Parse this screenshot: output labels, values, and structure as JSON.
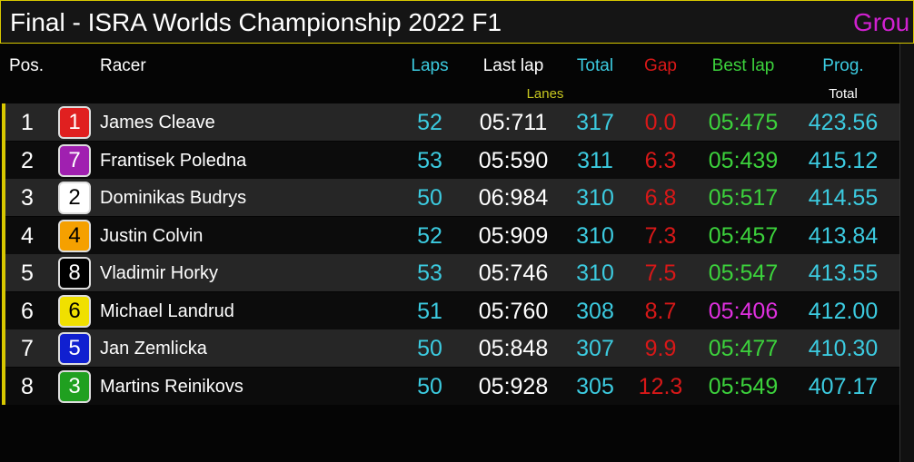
{
  "header": {
    "title": "Final - ISRA Worlds Championship 2022 F1",
    "group": "Grou"
  },
  "table": {
    "columns": [
      "Pos.",
      "Racer",
      "Laps",
      "Last lap",
      "Total",
      "Gap",
      "Best lap",
      "Prog."
    ],
    "subcolumns": [
      "Lanes",
      "Total"
    ],
    "rows": [
      [
        "1",
        "1",
        "James Cleave",
        "52",
        "05:711",
        "317",
        "0.0",
        "05:475",
        "423.56"
      ],
      [
        "2",
        "7",
        "Frantisek Poledna",
        "53",
        "05:590",
        "311",
        "6.3",
        "05:439",
        "415.12"
      ],
      [
        "3",
        "2",
        "Dominikas Budrys",
        "50",
        "06:984",
        "310",
        "6.8",
        "05:517",
        "414.55"
      ],
      [
        "4",
        "4",
        "Justin Colvin",
        "52",
        "05:909",
        "310",
        "7.3",
        "05:457",
        "413.84"
      ],
      [
        "5",
        "8",
        "Vladimir Horky",
        "53",
        "05:746",
        "310",
        "7.5",
        "05:547",
        "413.55"
      ],
      [
        "6",
        "6",
        "Michael Landrud",
        "51",
        "05:760",
        "308",
        "8.7",
        "05:406",
        "412.00"
      ],
      [
        "7",
        "5",
        "Jan Zemlicka",
        "50",
        "05:848",
        "307",
        "9.9",
        "05:477",
        "410.30"
      ],
      [
        "8",
        "3",
        "Martins Reinikovs",
        "50",
        "05:928",
        "305",
        "12.3",
        "05:549",
        "407.17"
      ]
    ]
  }
}
